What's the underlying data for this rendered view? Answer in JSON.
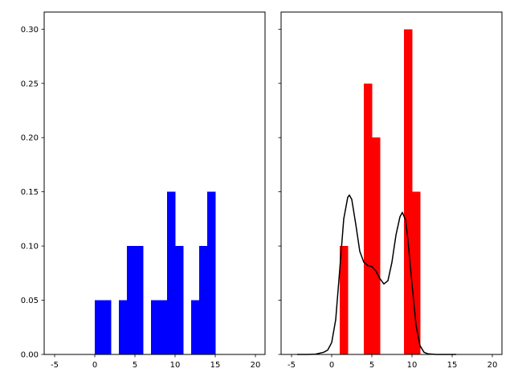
{
  "chart_data": [
    {
      "type": "bar",
      "subtype": "histogram",
      "color": "#0000ff",
      "xlim": [
        -6.3,
        21.2
      ],
      "ylim": [
        0,
        0.3158
      ],
      "xticks": [
        -5,
        0,
        5,
        10,
        15,
        20
      ],
      "yticks": [
        "0.00",
        "0.05",
        "0.10",
        "0.15",
        "0.20",
        "0.25",
        "0.30"
      ],
      "show_ytick_labels": true,
      "grid": false,
      "bins": [
        {
          "x0": 0,
          "x1": 1,
          "value": 0.05
        },
        {
          "x0": 1,
          "x1": 2,
          "value": 0.05
        },
        {
          "x0": 3,
          "x1": 4,
          "value": 0.05
        },
        {
          "x0": 4,
          "x1": 5,
          "value": 0.1
        },
        {
          "x0": 5,
          "x1": 6,
          "value": 0.1
        },
        {
          "x0": 7,
          "x1": 8,
          "value": 0.05
        },
        {
          "x0": 8,
          "x1": 9,
          "value": 0.05
        },
        {
          "x0": 9,
          "x1": 10,
          "value": 0.15
        },
        {
          "x0": 10,
          "x1": 11,
          "value": 0.1
        },
        {
          "x0": 12,
          "x1": 13,
          "value": 0.05
        },
        {
          "x0": 13,
          "x1": 14,
          "value": 0.1
        },
        {
          "x0": 14,
          "x1": 15,
          "value": 0.15
        }
      ]
    },
    {
      "type": "bar",
      "subtype": "histogram with density line",
      "color": "#ff0000",
      "line_color": "#000000",
      "xlim": [
        -6.3,
        21.2
      ],
      "ylim": [
        0,
        0.3158
      ],
      "xticks": [
        -5,
        0,
        5,
        10,
        15,
        20
      ],
      "yticks": [
        "0.00",
        "0.05",
        "0.10",
        "0.15",
        "0.20",
        "0.25",
        "0.30"
      ],
      "show_ytick_labels": false,
      "grid": false,
      "bins": [
        {
          "x0": 1,
          "x1": 2,
          "value": 0.1
        },
        {
          "x0": 4,
          "x1": 5,
          "value": 0.25
        },
        {
          "x0": 5,
          "x1": 6,
          "value": 0.2
        },
        {
          "x0": 9,
          "x1": 10,
          "value": 0.3
        },
        {
          "x0": 10,
          "x1": 11,
          "value": 0.15
        }
      ],
      "density_line": {
        "x": [
          -4.3,
          -3,
          -2,
          -1,
          -0.5,
          0,
          0.5,
          1,
          1.5,
          2,
          2.2,
          2.5,
          3,
          3.5,
          4,
          4.5,
          5,
          5.5,
          6,
          6.5,
          7,
          7.5,
          8,
          8.5,
          8.8,
          9.2,
          9.5,
          10,
          10.5,
          11,
          11.5,
          12,
          13,
          15.5
        ],
        "y": [
          0,
          0,
          0.0003,
          0.002,
          0.004,
          0.011,
          0.032,
          0.078,
          0.125,
          0.145,
          0.147,
          0.143,
          0.12,
          0.095,
          0.085,
          0.082,
          0.081,
          0.077,
          0.07,
          0.065,
          0.068,
          0.085,
          0.11,
          0.127,
          0.131,
          0.124,
          0.105,
          0.065,
          0.027,
          0.008,
          0.002,
          0.0005,
          0,
          0
        ]
      }
    }
  ]
}
